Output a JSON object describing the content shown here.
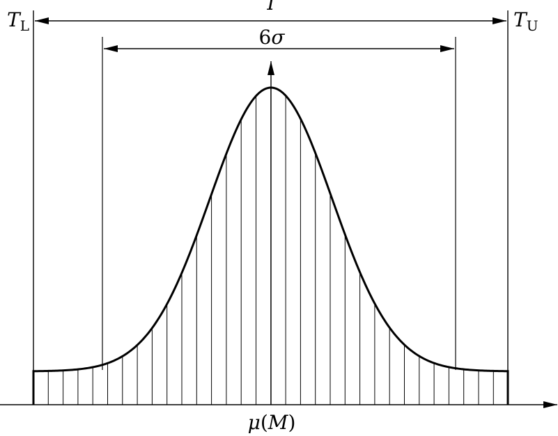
{
  "labels": {
    "tolerance_total": {
      "symbol": "T"
    },
    "tolerance_lower": {
      "symbol": "T",
      "subscript": "L"
    },
    "tolerance_upper": {
      "symbol": "T",
      "subscript": "U"
    },
    "process_spread": {
      "number": "6",
      "symbol": "σ"
    },
    "center": {
      "symbol": "μ",
      "open": "(",
      "inner": "M",
      "close": ")"
    }
  },
  "colors": {
    "ink": "#000000",
    "background": "#ffffff"
  }
}
